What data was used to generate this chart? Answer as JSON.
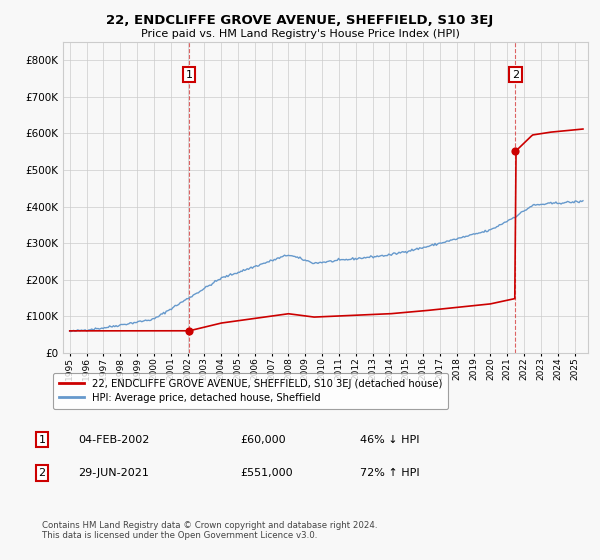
{
  "title": "22, ENDCLIFFE GROVE AVENUE, SHEFFIELD, S10 3EJ",
  "subtitle": "Price paid vs. HM Land Registry's House Price Index (HPI)",
  "legend_line1": "22, ENDCLIFFE GROVE AVENUE, SHEFFIELD, S10 3EJ (detached house)",
  "legend_line2": "HPI: Average price, detached house, Sheffield",
  "annotation1_label": "1",
  "annotation1_date": "04-FEB-2002",
  "annotation1_price": "£60,000",
  "annotation1_hpi": "46% ↓ HPI",
  "annotation2_label": "2",
  "annotation2_date": "29-JUN-2021",
  "annotation2_price": "£551,000",
  "annotation2_hpi": "72% ↑ HPI",
  "footer": "Contains HM Land Registry data © Crown copyright and database right 2024.\nThis data is licensed under the Open Government Licence v3.0.",
  "sale_color": "#cc0000",
  "hpi_color": "#6699cc",
  "dashed_vline_color": "#cc0000",
  "background_color": "#f8f8f8",
  "grid_color": "#cccccc",
  "ylim_max": 850000,
  "sale1_year": 2002.09,
  "sale1_price": 60000,
  "sale2_year": 2021.49,
  "sale2_price": 551000
}
